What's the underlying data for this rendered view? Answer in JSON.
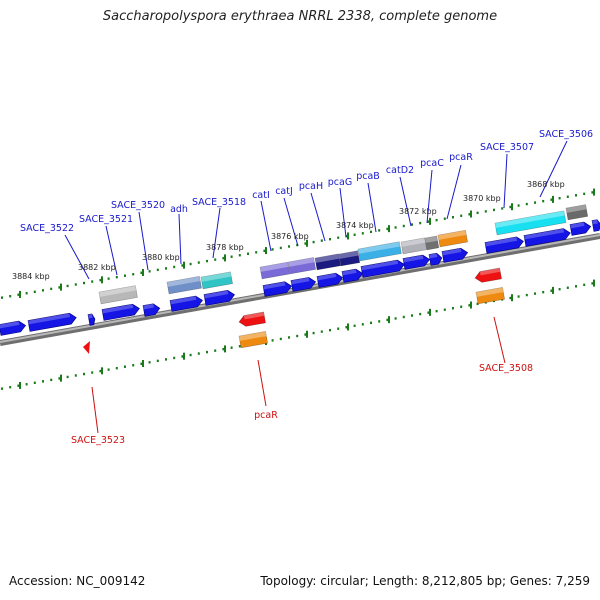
{
  "title": "Saccharopolyspora erythraea NRRL 2338, complete genome",
  "footer": {
    "accession_label": "Accession:",
    "accession": "NC_009142",
    "topology_label": "Topology:",
    "topology": "circular",
    "length_label": "Length:",
    "length": "8,212,805 bp",
    "genes_label": "Genes:",
    "genes": "7,259"
  },
  "colors": {
    "backbone": "#888888",
    "ticks": "#1a7a1a",
    "label_forward": "#1a1acc",
    "label_reverse": "#cc1111",
    "label_coord": "#222222"
  },
  "coord_labels": [
    "3884 kbp",
    "3882 kbp",
    "3880 kbp",
    "3878 kbp",
    "3876 kbp",
    "3874 kbp",
    "3872 kbp",
    "3870 kbp",
    "3868 kbp"
  ],
  "forward_gene_labels": [
    "SACE_3522",
    "SACE_3521",
    "SACE_3520",
    "adh",
    "SACE_3518",
    "catI",
    "catJ",
    "pcaH",
    "pcaG",
    "pcaB",
    "catD2",
    "pcaC",
    "pcaR",
    "SACE_3507",
    "SACE_3506"
  ],
  "reverse_gene_labels": [
    "SACE_3523",
    "pcaR",
    "SACE_3508"
  ]
}
